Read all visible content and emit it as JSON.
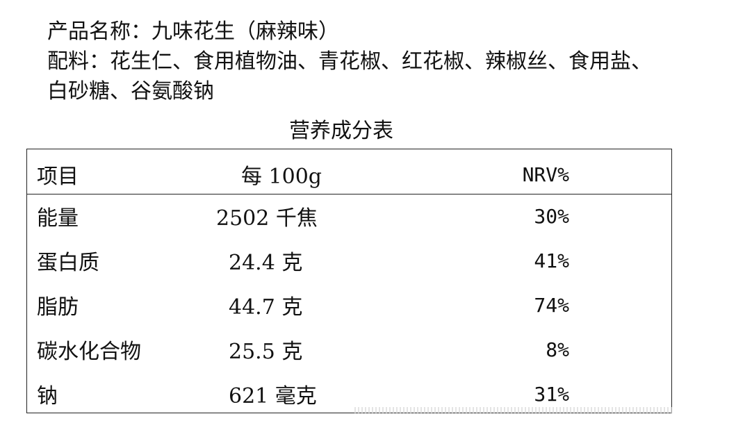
{
  "product": {
    "name_line": "产品名称：九味花生（麻辣味）",
    "ingredients_line1": "配料：花生仁、食用植物油、青花椒、红花椒、辣椒丝、食用盐、",
    "ingredients_line2": "白砂糖、谷氨酸钠"
  },
  "nutrition": {
    "title": "营养成分表",
    "headers": {
      "item": "项目",
      "per": "每 100g",
      "nrv": "NRV%"
    },
    "rows": [
      {
        "item": "能量",
        "value": "2502 千焦",
        "nrv": "30%"
      },
      {
        "item": "蛋白质",
        "value": "24.4 克",
        "nrv": "41%"
      },
      {
        "item": "脂肪",
        "value": "44.7 克",
        "nrv": "74%"
      },
      {
        "item": "碳水化合物",
        "value": "25.5 克",
        "nrv": "8%"
      },
      {
        "item": "钠",
        "value": "621 毫克",
        "nrv": "31%"
      }
    ]
  }
}
